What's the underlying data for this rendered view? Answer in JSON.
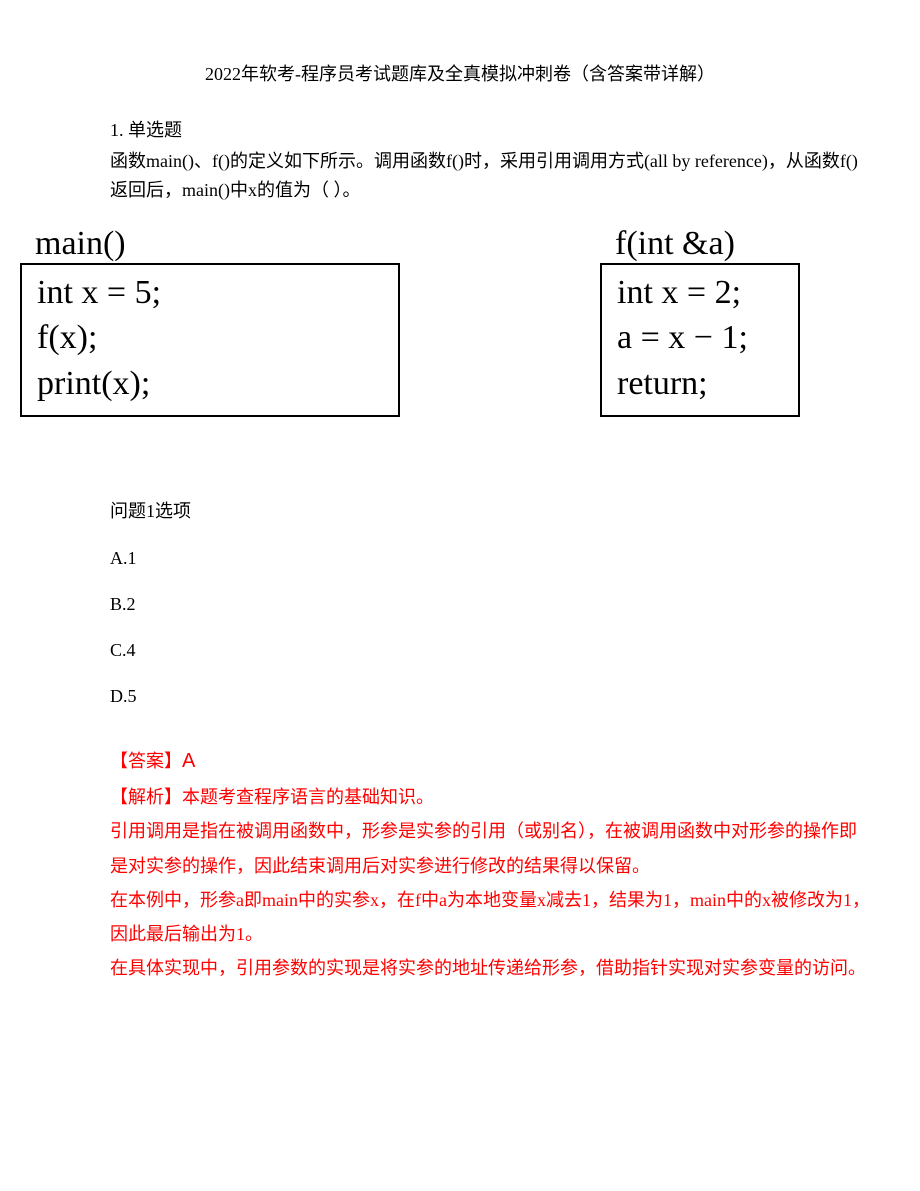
{
  "title": "2022年软考-程序员考试题库及全真模拟冲刺卷（含答案带详解）",
  "question": {
    "number": "1. 单选题",
    "text": "函数main()、f()的定义如下所示。调用函数f()时，采用引用调用方式(all by reference)，从函数f()返回后，main()中x的值为（ ）。"
  },
  "code": {
    "main": {
      "header": "main()",
      "lines": [
        "int x = 5;",
        "f(x);",
        "print(x);"
      ]
    },
    "f": {
      "header": "f(int &a)",
      "lines": [
        "int x = 2;",
        "a = x − 1;",
        "return;"
      ]
    }
  },
  "sub_question": "问题1选项",
  "options": {
    "a": "A.1",
    "b": "B.2",
    "c": "C.4",
    "d": "D.5"
  },
  "answer": {
    "label": "【答案】",
    "value": "A"
  },
  "analysis": {
    "label": "【解析】",
    "heading": "本题考查程序语言的基础知识。",
    "para1": "引用调用是指在被调用函数中，形参是实参的引用（或别名），在被调用函数中对形参的操作即是对实参的操作，因此结束调用后对实参进行修改的结果得以保留。",
    "para2": "在本例中，形参a即main中的实参x，在f中a为本地变量x减去1，结果为1，main中的x被修改为1，因此最后输出为1。",
    "para3": "在具体实现中，引用参数的实现是将实参的地址传递给形参，借助指针实现对实参变量的访问。"
  }
}
